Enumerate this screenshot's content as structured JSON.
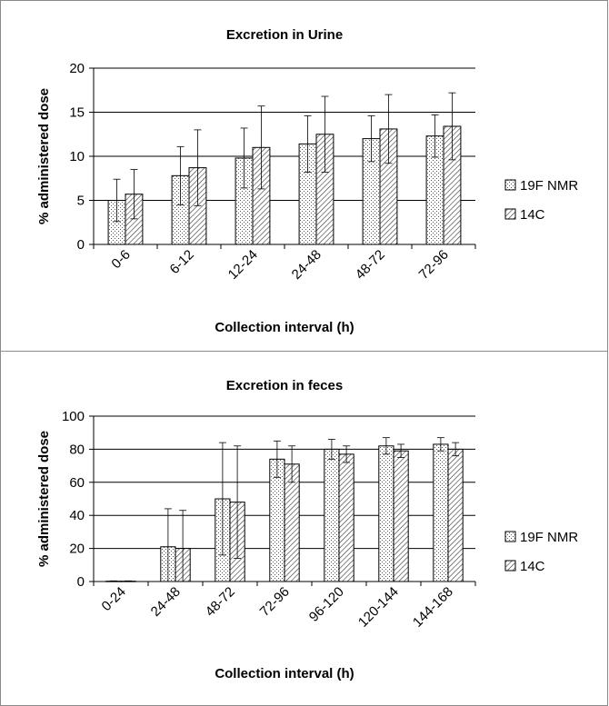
{
  "chart_data": [
    {
      "type": "bar",
      "title": "Excretion in Urine",
      "xlabel": "Collection interval (h)",
      "ylabel": "% administered dose",
      "categories": [
        "0-6",
        "6-12",
        "12-24",
        "24-48",
        "48-72",
        "72-96"
      ],
      "ylim": [
        0,
        20
      ],
      "yticks": [
        0,
        5,
        10,
        15,
        20
      ],
      "grid": true,
      "legend_position": "right",
      "series": [
        {
          "name": "19F NMR",
          "pattern": "dots",
          "values": [
            5.0,
            7.8,
            9.8,
            11.4,
            12.0,
            12.3
          ],
          "errors": [
            2.4,
            3.3,
            3.4,
            3.2,
            2.6,
            2.4
          ]
        },
        {
          "name": "14C",
          "pattern": "hatch",
          "values": [
            5.7,
            8.7,
            11.0,
            12.5,
            13.1,
            13.4
          ],
          "errors": [
            2.8,
            4.3,
            4.7,
            4.3,
            3.9,
            3.8
          ]
        }
      ]
    },
    {
      "type": "bar",
      "title": "Excretion in feces",
      "xlabel": "Collection interval (h)",
      "ylabel": "% administered dose",
      "categories": [
        "0-24",
        "24-48",
        "48-72",
        "72-96",
        "96-120",
        "120-144",
        "144-168"
      ],
      "ylim": [
        0,
        100
      ],
      "yticks": [
        0,
        20,
        40,
        60,
        80,
        100
      ],
      "grid": true,
      "legend_position": "right",
      "series": [
        {
          "name": "19F NMR",
          "pattern": "dots",
          "values": [
            0.2,
            21,
            50,
            74,
            80,
            82,
            83
          ],
          "errors": [
            0.2,
            23,
            34,
            11,
            6,
            5,
            4
          ]
        },
        {
          "name": "14C",
          "pattern": "hatch",
          "values": [
            0.2,
            20,
            48,
            71,
            77,
            79,
            80
          ],
          "errors": [
            0.2,
            23,
            34,
            11,
            5,
            4,
            4
          ]
        }
      ]
    }
  ]
}
